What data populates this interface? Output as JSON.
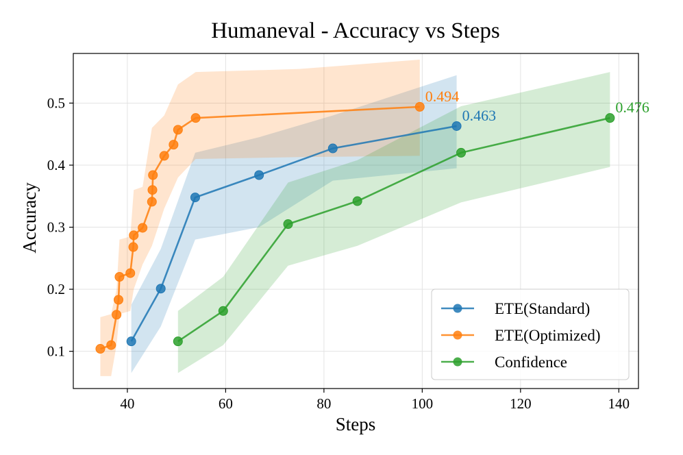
{
  "chart_data": {
    "type": "line",
    "title": "Humaneval - Accuracy vs Steps",
    "xlabel": "Steps",
    "ylabel": "Accuracy",
    "xlim": [
      29,
      144
    ],
    "ylim": [
      0.04,
      0.58
    ],
    "xticks": [
      40,
      60,
      80,
      100,
      120,
      140
    ],
    "yticks": [
      0.1,
      0.2,
      0.3,
      0.4,
      0.5
    ],
    "xtick_labels": [
      "40",
      "60",
      "80",
      "100",
      "120",
      "140"
    ],
    "ytick_labels": [
      "0.1",
      "0.2",
      "0.3",
      "0.4",
      "0.5"
    ],
    "grid": true,
    "legend_position": "lower-right",
    "series": [
      {
        "name": "ETE(Standard)",
        "color": "#1f77b4",
        "x": [
          40.8,
          46.8,
          53.8,
          66.8,
          81.8,
          107.0
        ],
        "y": [
          0.116,
          0.201,
          0.348,
          0.384,
          0.427,
          0.463
        ],
        "band_x": [
          40.8,
          46.8,
          53.8,
          66.8,
          81.8,
          107.0
        ],
        "band_lower": [
          0.065,
          0.14,
          0.28,
          0.3,
          0.375,
          0.395
        ],
        "band_upper": [
          0.175,
          0.265,
          0.42,
          0.445,
          0.48,
          0.545
        ],
        "end_label": "0.463"
      },
      {
        "name": "ETE(Optimized)",
        "color": "#ff7f0e",
        "x": [
          34.5,
          36.7,
          37.8,
          38.2,
          38.4,
          40.6,
          41.2,
          41.3,
          43.1,
          45.0,
          45.1,
          45.2,
          47.5,
          49.4,
          50.3,
          53.9,
          99.5
        ],
        "y": [
          0.104,
          0.11,
          0.159,
          0.183,
          0.22,
          0.226,
          0.268,
          0.287,
          0.299,
          0.341,
          0.36,
          0.384,
          0.415,
          0.433,
          0.457,
          0.476,
          0.494
        ],
        "band_x": [
          34.5,
          36.7,
          37.8,
          38.4,
          40.6,
          41.3,
          43.1,
          45.0,
          47.5,
          50.3,
          53.9,
          75.0,
          99.5
        ],
        "band_lower": [
          0.06,
          0.06,
          0.11,
          0.16,
          0.165,
          0.2,
          0.24,
          0.27,
          0.33,
          0.38,
          0.41,
          0.413,
          0.415
        ],
        "band_upper": [
          0.155,
          0.16,
          0.2,
          0.28,
          0.285,
          0.36,
          0.365,
          0.46,
          0.48,
          0.53,
          0.55,
          0.555,
          0.57
        ],
        "end_label": "0.494"
      },
      {
        "name": "Confidence",
        "color": "#2ca02c",
        "x": [
          50.3,
          59.5,
          72.7,
          86.8,
          107.9,
          138.2
        ],
        "y": [
          0.116,
          0.165,
          0.305,
          0.342,
          0.42,
          0.476
        ],
        "band_x": [
          50.3,
          59.5,
          72.7,
          86.8,
          107.9,
          138.2
        ],
        "band_lower": [
          0.065,
          0.11,
          0.238,
          0.27,
          0.34,
          0.397
        ],
        "band_upper": [
          0.165,
          0.22,
          0.372,
          0.408,
          0.495,
          0.55
        ],
        "end_label": "0.476"
      }
    ]
  }
}
